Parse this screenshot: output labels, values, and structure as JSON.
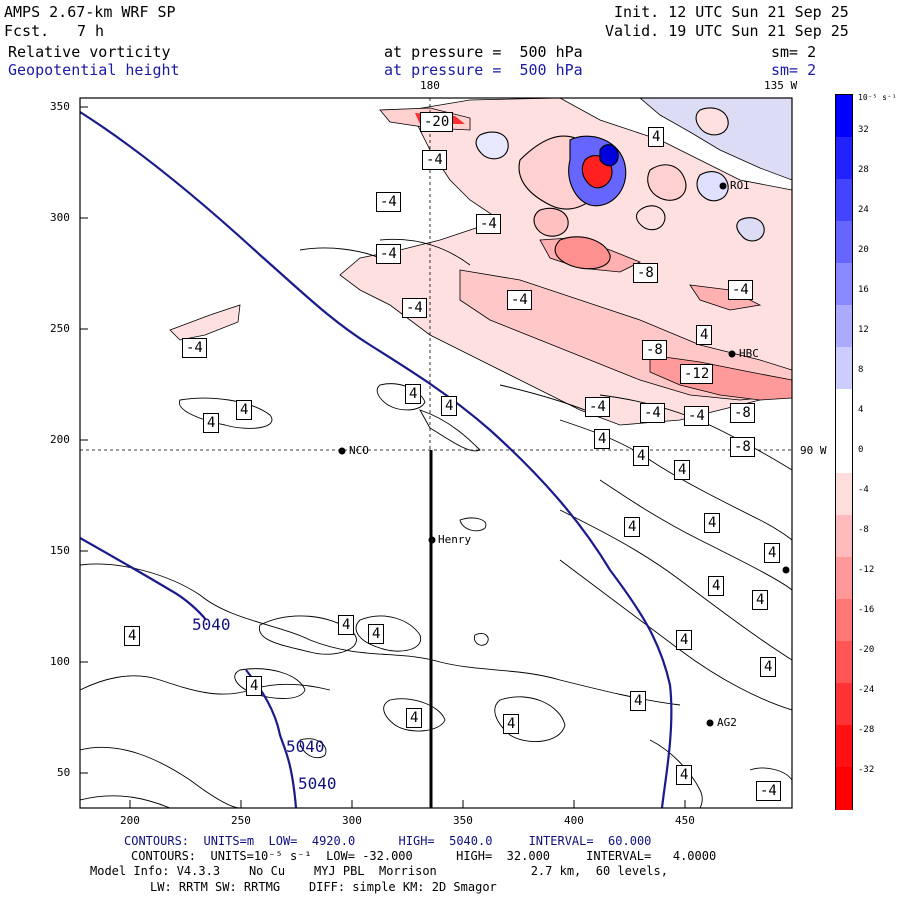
{
  "header": {
    "model": "AMPS 2.67-km WRF SP",
    "init": "Init. 12 UTC Sun 21 Sep 25",
    "forecast_label": "Fcst.",
    "forecast_value": "7 h",
    "valid": "Valid. 19 UTC Sun 21 Sep 25",
    "field1": "Relative vorticity",
    "field1_level": "at pressure =  500 hPa",
    "field1_sm": "sm= 2",
    "field2": "Geopotential height",
    "field2_level": "at pressure =  500 hPa",
    "field2_sm": "sm= 2"
  },
  "map": {
    "lon_top_label": "180",
    "lon_top_right_label": "135 W",
    "lon_right_label": "90 W",
    "x_ticks": [
      "200",
      "250",
      "300",
      "350",
      "400",
      "450"
    ],
    "y_ticks": [
      "350",
      "300",
      "250",
      "200",
      "150",
      "100",
      "50"
    ],
    "stations": [
      {
        "name": "NCO"
      },
      {
        "name": "Henry"
      },
      {
        "name": "HBC"
      },
      {
        "name": "AG2"
      },
      {
        "name": "ROI"
      }
    ],
    "height_labels": [
      "5040",
      "5040",
      "5040"
    ],
    "contour_labels": [
      "-20",
      "-4",
      "-4",
      "-4",
      "-4",
      "-4",
      "-4",
      "4",
      "-8",
      "-4",
      "4",
      "-4",
      "-8",
      "-12",
      "4",
      "4",
      "4",
      "4",
      "-4",
      "-4",
      "-4",
      "-8",
      "4",
      "4",
      "-8",
      "4",
      "4",
      "4",
      "4",
      "4",
      "4",
      "4",
      "4",
      "4",
      "4",
      "4",
      "4",
      "4",
      "4",
      "4",
      "4",
      "-4"
    ]
  },
  "colorbar": {
    "unit_label": "10⁻⁵ s⁻¹",
    "labels": [
      "32",
      "28",
      "24",
      "20",
      "16",
      "12",
      "8",
      "4",
      "0",
      "-4",
      "-8",
      "-12",
      "-16",
      "-20",
      "-24",
      "-28",
      "-32"
    ],
    "colors": [
      "#0000ff",
      "#2222ff",
      "#4444ff",
      "#6666ff",
      "#8888ff",
      "#aaaaff",
      "#ccccff",
      "#ffffff",
      "#ffffff",
      "#ffdddd",
      "#ffbbbb",
      "#ff9999",
      "#ff7777",
      "#ff5555",
      "#ff3333",
      "#ff1111",
      "#ff0000"
    ]
  },
  "footer": {
    "line1": "CONTOURS:  UNITS=m  LOW=  4920.0      HIGH=  5040.0     INTERVAL=  60.000",
    "line2": "CONTOURS:  UNITS=10⁻⁵ s⁻¹  LOW= -32.000      HIGH=  32.000     INTERVAL=   4.0000",
    "line3": "Model Info: V4.3.3    No Cu    MYJ PBL  Morrison             2.7 km,  60 levels,",
    "line4": "LW: RRTM SW: RRTMG    DIFF: simple KM: 2D Smagor"
  }
}
